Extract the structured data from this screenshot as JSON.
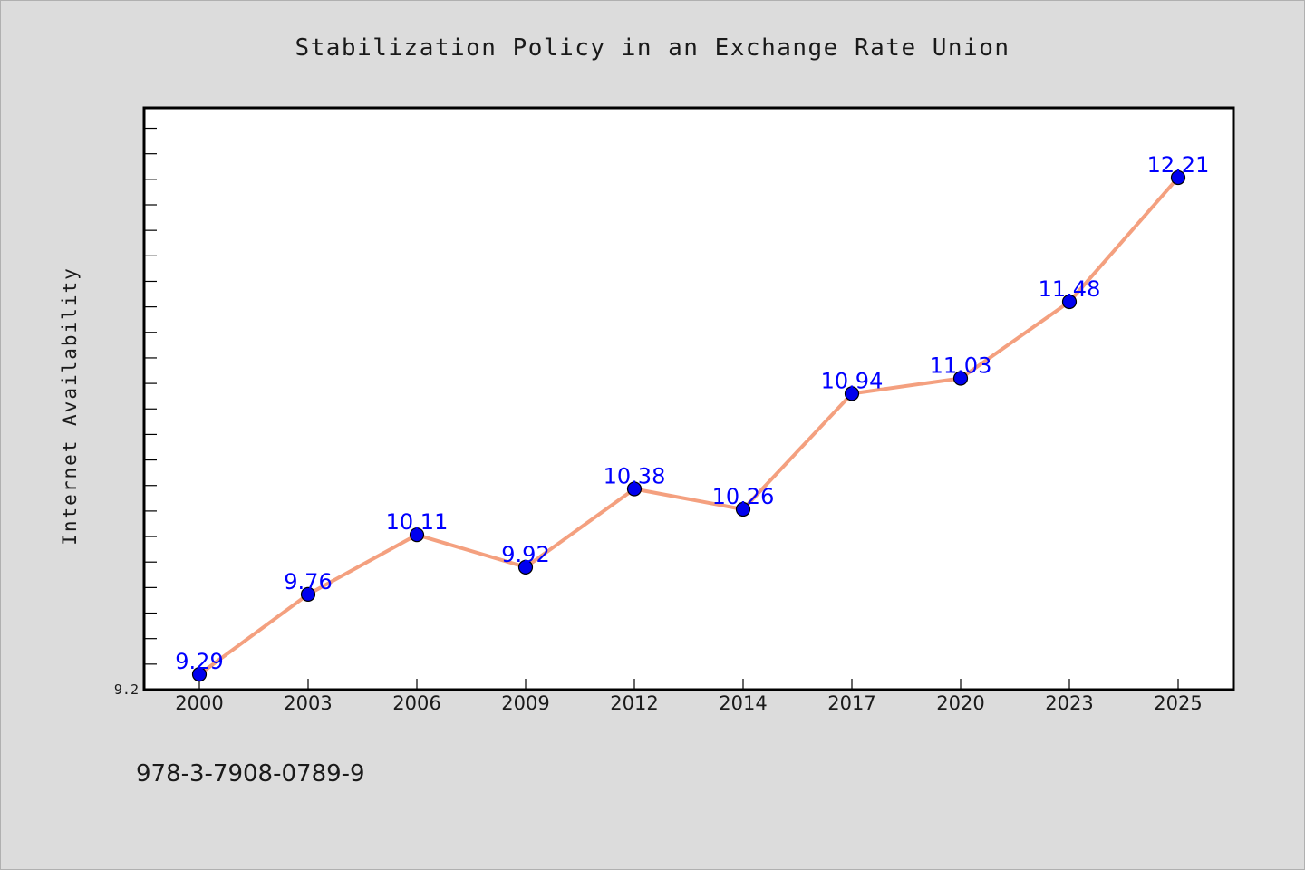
{
  "chart_data": {
    "type": "line",
    "title": "Stabilization Policy in an Exchange Rate Union",
    "xlabel": "",
    "ylabel": "Internet Availability",
    "categories": [
      "2000",
      "2003",
      "2006",
      "2009",
      "2012",
      "2014",
      "2017",
      "2020",
      "2023",
      "2025"
    ],
    "series": [
      {
        "values": [
          9.29,
          9.76,
          10.11,
          9.92,
          10.38,
          10.26,
          10.94,
          11.03,
          11.48,
          12.21
        ]
      }
    ],
    "data_labels": [
      "9.29",
      "9.76",
      "10.11",
      "9.92",
      "10.38",
      "10.26",
      "10.94",
      "11.03",
      "11.48",
      "12.21"
    ],
    "ylim": [
      9.2,
      12.62
    ],
    "ytick_labels": [
      "9.2"
    ],
    "grid": false,
    "line_color": "#f4a07f",
    "marker_color": "#0000ee",
    "label_color": "#0000ff",
    "plot_background": "#ffffff",
    "page_background": "#dcdcdc"
  },
  "footer": {
    "text": "978-3-7908-0789-9"
  }
}
